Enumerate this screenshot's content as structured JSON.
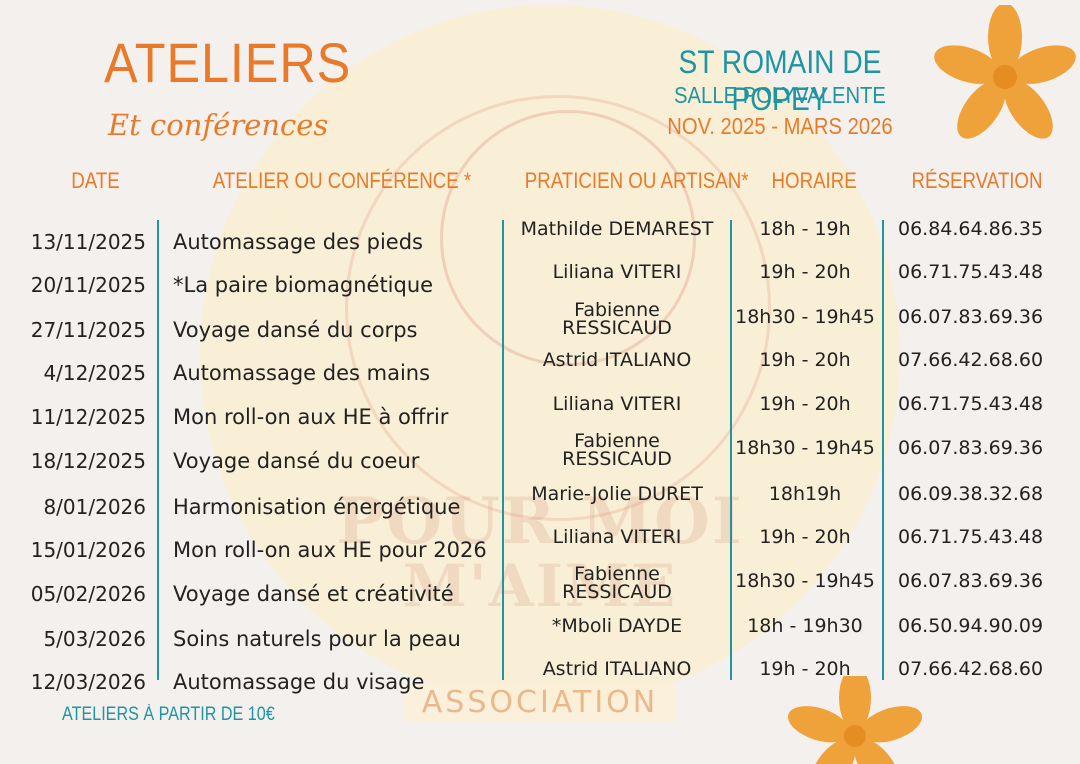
{
  "title": {
    "main": "ATELIERS",
    "sub": "Et conférences"
  },
  "location": {
    "town": "ST ROMAIN DE POPEY",
    "venue": "SALLE POLYVALENTE",
    "period": "NOV. 2025 - MARS 2026"
  },
  "headers": {
    "date": "DATE",
    "atelier": "ATELIER OU CONFÉRENCE *",
    "praticien": "PRATICIEN OU ARTISAN*",
    "horaire": "HORAIRE",
    "reservation": "RÉSERVATION"
  },
  "rows": [
    {
      "date": "13/11/2025",
      "atelier": "Automassage des pieds",
      "praticien": "Mathilde DEMAREST",
      "horaire": "18h - 19h",
      "reservation": "06.84.64.86.35"
    },
    {
      "date": "20/11/2025",
      "atelier": "*La paire biomagnétique",
      "praticien": "Liliana VITERI",
      "horaire": "19h - 20h",
      "reservation": "06.71.75.43.48"
    },
    {
      "date": "27/11/2025",
      "atelier": "Voyage dansé du corps",
      "praticien": "Fabienne\nRESSICAUD",
      "horaire": "18h30 - 19h45",
      "reservation": "06.07.83.69.36"
    },
    {
      "date": "4/12/2025",
      "atelier": "Automassage des mains",
      "praticien": "Astrid ITALIANO",
      "horaire": "19h - 20h",
      "reservation": "07.66.42.68.60"
    },
    {
      "date": "11/12/2025",
      "atelier": "Mon roll-on aux HE à offrir",
      "praticien": "Liliana VITERI",
      "horaire": "19h - 20h",
      "reservation": "06.71.75.43.48"
    },
    {
      "date": "18/12/2025",
      "atelier": "Voyage dansé du coeur",
      "praticien": "Fabienne\nRESSICAUD",
      "horaire": "18h30 - 19h45",
      "reservation": "06.07.83.69.36"
    },
    {
      "date": "8/01/2026",
      "atelier": "Harmonisation énergétique",
      "praticien": "Marie-Jolie DURET",
      "horaire": "18h19h",
      "reservation": "06.09.38.32.68"
    },
    {
      "date": "15/01/2026",
      "atelier": "Mon roll-on aux HE pour 2026",
      "praticien": "Liliana VITERI",
      "horaire": "19h - 20h",
      "reservation": "06.71.75.43.48"
    },
    {
      "date": "05/02/2026",
      "atelier": "Voyage dansé et créativité",
      "praticien": "Fabienne\nRESSICAUD",
      "horaire": "18h30 - 19h45",
      "reservation": "06.07.83.69.36"
    },
    {
      "date": "5/03/2026",
      "atelier": "Soins naturels pour la peau",
      "praticien": "*Mboli DAYDE",
      "horaire": "18h - 19h30",
      "reservation": "06.50.94.90.09"
    },
    {
      "date": "12/03/2026",
      "atelier": "Automassage du visage",
      "praticien": "Astrid ITALIANO",
      "horaire": "19h - 20h",
      "reservation": "07.66.42.68.60"
    }
  ],
  "watermark": {
    "line1": "POUR MOI",
    "line2": "M'AIME"
  },
  "association": "ASSOCIATION",
  "footer": "ATELIERS À PARTIR DE 10€",
  "colors": {
    "orange": "#e87a2a",
    "teal": "#1f94a3",
    "flower": "#f0a23a"
  },
  "icons": [
    "flower-icon"
  ]
}
